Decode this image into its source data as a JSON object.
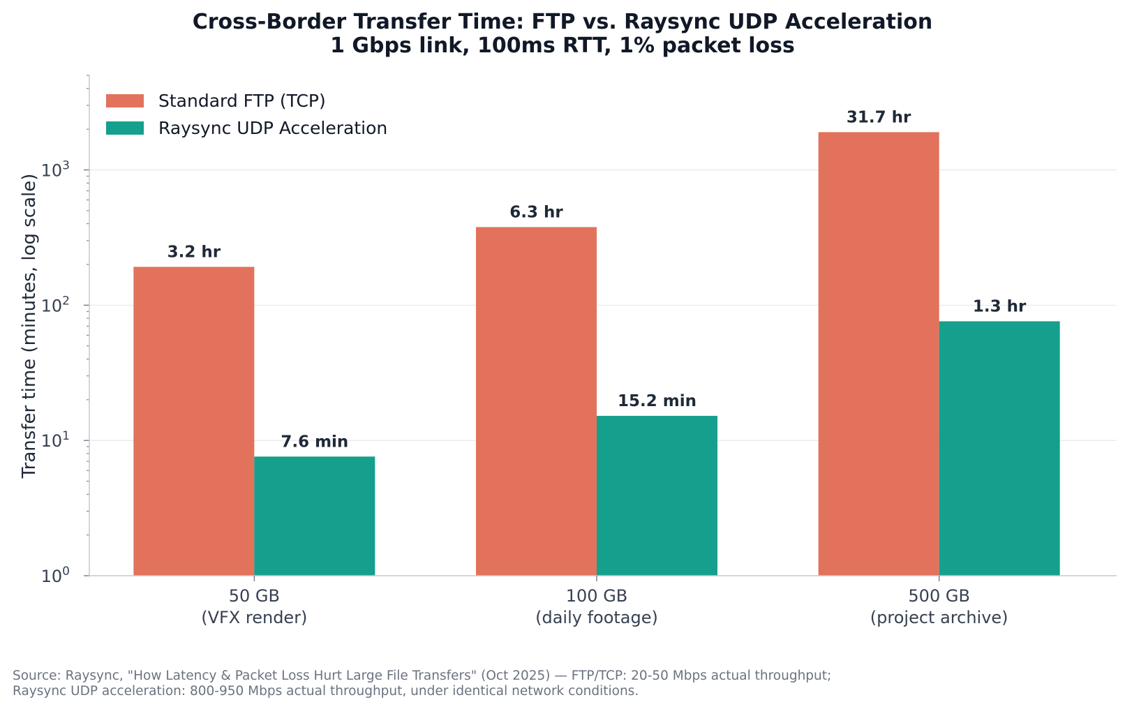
{
  "chart_data": {
    "type": "bar",
    "title": [
      "Cross-Border Transfer Time: FTP vs. Raysync UDP Acceleration",
      "1 Gbps link, 100ms RTT, 1% packet loss"
    ],
    "ylabel": "Transfer time (minutes, log scale)",
    "xlabel": "",
    "yscale": "log",
    "ylim": [
      1,
      5000
    ],
    "yticks": [
      {
        "value": 1,
        "base": "10",
        "exp": "0"
      },
      {
        "value": 10,
        "base": "10",
        "exp": "1"
      },
      {
        "value": 100,
        "base": "10",
        "exp": "2"
      },
      {
        "value": 1000,
        "base": "10",
        "exp": "3"
      }
    ],
    "grid": true,
    "legend_position": "top-left",
    "categories": [
      [
        "50 GB",
        "(VFX render)"
      ],
      [
        "100 GB",
        "(daily footage)"
      ],
      [
        "500 GB",
        "(project archive)"
      ]
    ],
    "series": [
      {
        "name": "Standard FTP (TCP)",
        "color": "#e2725b",
        "values": [
          192,
          378,
          1902
        ],
        "labels": [
          "3.2 hr",
          "6.3 hr",
          "31.7 hr"
        ]
      },
      {
        "name": "Raysync UDP Acceleration",
        "color": "#14a08c",
        "values": [
          7.6,
          15.2,
          76
        ],
        "labels": [
          "7.6 min",
          "15.2 min",
          "1.3 hr"
        ]
      }
    ]
  },
  "source_note": [
    "Source: Raysync, \"How Latency & Packet Loss Hurt Large File Transfers\" (Oct 2025) — FTP/TCP: 20-50 Mbps actual throughput;",
    "Raysync UDP acceleration: 800-950 Mbps actual throughput, under identical network conditions."
  ]
}
